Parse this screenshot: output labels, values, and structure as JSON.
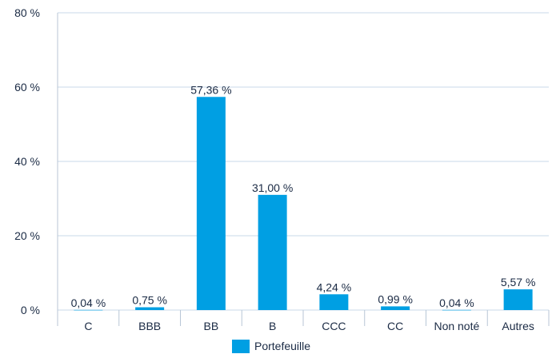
{
  "chart_data": {
    "type": "bar",
    "categories": [
      "C",
      "BBB",
      "BB",
      "B",
      "CCC",
      "CC",
      "Non noté",
      "Autres"
    ],
    "series": [
      {
        "name": "Portefeuille",
        "values": [
          0.04,
          0.75,
          57.36,
          31.0,
          4.24,
          0.99,
          0.04,
          5.57
        ],
        "labels": [
          "0,04 %",
          "0,75 %",
          "57,36 %",
          "31,00 %",
          "4,24 %",
          "0,99 %",
          "0,04 %",
          "5,57 %"
        ]
      }
    ],
    "ylim": [
      0,
      80
    ],
    "yticks": [
      0,
      20,
      40,
      60,
      80
    ],
    "ytick_labels": [
      "0 %",
      "20 %",
      "40 %",
      "60 %",
      "80 %"
    ],
    "grid": true,
    "legend_position": "bottom-center",
    "bar_color": "#009fe3"
  }
}
